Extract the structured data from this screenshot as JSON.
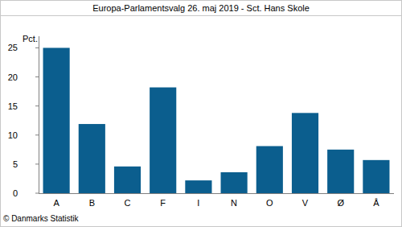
{
  "chart_data": {
    "type": "bar",
    "title": "Europa-Parlamentsvalg 26. maj 2019 - Sct. Hans Skole",
    "y_label": "Pct.",
    "source": "© Danmarks Statistik",
    "categories": [
      "A",
      "B",
      "C",
      "F",
      "I",
      "N",
      "O",
      "V",
      "Ø",
      "Å"
    ],
    "values": [
      25.0,
      11.9,
      4.6,
      18.2,
      2.2,
      3.6,
      8.1,
      13.8,
      7.5,
      5.7
    ],
    "color": "#0b5e8e",
    "ylim": [
      0,
      27
    ],
    "yticks": [
      0,
      5,
      10,
      15,
      20,
      25
    ],
    "grid": false
  }
}
